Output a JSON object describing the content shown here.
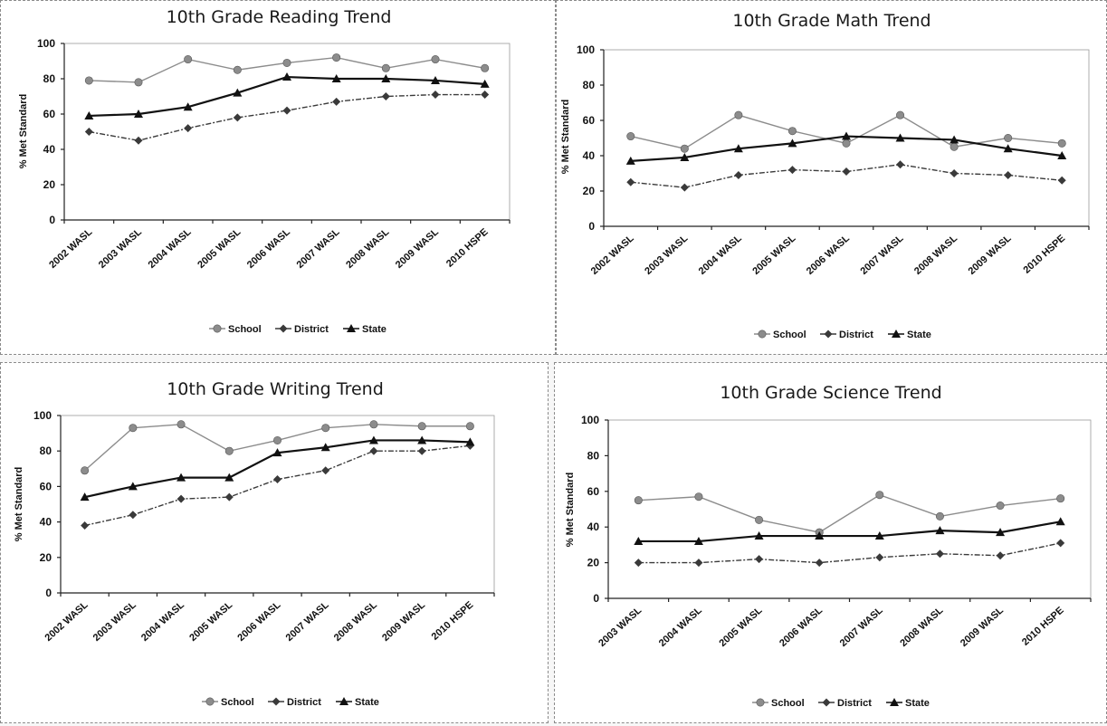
{
  "chart_data": [
    {
      "type": "line",
      "title": "10th Grade Reading Trend",
      "xlabel": "",
      "ylabel": "% Met Standard",
      "ylim": [
        0,
        100
      ],
      "yticks": [
        0,
        20,
        40,
        60,
        80,
        100
      ],
      "categories": [
        "2002 WASL",
        "2003 WASL",
        "2004 WASL",
        "2005 WASL",
        "2006 WASL",
        "2007 WASL",
        "2008 WASL",
        "2009 WASL",
        "2010 HSPE"
      ],
      "series": [
        {
          "name": "School",
          "values": [
            79,
            78,
            91,
            85,
            89,
            92,
            86,
            91,
            86
          ]
        },
        {
          "name": "District",
          "values": [
            50,
            45,
            52,
            58,
            62,
            67,
            70,
            71,
            71
          ]
        },
        {
          "name": "State",
          "values": [
            59,
            60,
            64,
            72,
            81,
            80,
            80,
            79,
            77
          ]
        }
      ],
      "legend": "bottom",
      "grid": false
    },
    {
      "type": "line",
      "title": "10th Grade Math Trend",
      "xlabel": "",
      "ylabel": "% Met Standard",
      "ylim": [
        0,
        100
      ],
      "yticks": [
        0,
        20,
        40,
        60,
        80,
        100
      ],
      "categories": [
        "2002 WASL",
        "2003 WASL",
        "2004 WASL",
        "2005 WASL",
        "2006 WASL",
        "2007 WASL",
        "2008 WASL",
        "2009 WASL",
        "2010 HSPE"
      ],
      "series": [
        {
          "name": "School",
          "values": [
            51,
            44,
            63,
            54,
            47,
            63,
            45,
            50,
            47
          ]
        },
        {
          "name": "District",
          "values": [
            25,
            22,
            29,
            32,
            31,
            35,
            30,
            29,
            26
          ]
        },
        {
          "name": "State",
          "values": [
            37,
            39,
            44,
            47,
            51,
            50,
            49,
            44,
            40
          ]
        }
      ],
      "legend": "bottom",
      "grid": false
    },
    {
      "type": "line",
      "title": "10th Grade Writing Trend",
      "xlabel": "",
      "ylabel": "% Met Standard",
      "ylim": [
        0,
        100
      ],
      "yticks": [
        0,
        20,
        40,
        60,
        80,
        100
      ],
      "categories": [
        "2002 WASL",
        "2003 WASL",
        "2004 WASL",
        "2005 WASL",
        "2006 WASL",
        "2007 WASL",
        "2008 WASL",
        "2009 WASL",
        "2010 HSPE"
      ],
      "series": [
        {
          "name": "School",
          "values": [
            69,
            93,
            95,
            80,
            86,
            93,
            95,
            94,
            94
          ]
        },
        {
          "name": "District",
          "values": [
            38,
            44,
            53,
            54,
            64,
            69,
            80,
            80,
            83
          ]
        },
        {
          "name": "State",
          "values": [
            54,
            60,
            65,
            65,
            79,
            82,
            86,
            86,
            85
          ]
        }
      ],
      "legend": "bottom",
      "grid": false
    },
    {
      "type": "line",
      "title": "10th Grade Science Trend",
      "xlabel": "",
      "ylabel": "% Met Standard",
      "ylim": [
        0,
        100
      ],
      "yticks": [
        0,
        20,
        40,
        60,
        80,
        100
      ],
      "categories": [
        "2003 WASL",
        "2004 WASL",
        "2005 WASL",
        "2006 WASL",
        "2007 WASL",
        "2008 WASL",
        "2009 WASL",
        "2010 HSPE"
      ],
      "series": [
        {
          "name": "School",
          "values": [
            55,
            57,
            44,
            37,
            58,
            46,
            52,
            56
          ]
        },
        {
          "name": "District",
          "values": [
            20,
            20,
            22,
            20,
            23,
            25,
            24,
            31
          ]
        },
        {
          "name": "State",
          "values": [
            32,
            32,
            35,
            35,
            35,
            38,
            37,
            43
          ]
        }
      ],
      "legend": "bottom",
      "grid": false
    }
  ],
  "style": {
    "series_colors": [
      "#8c8c8c",
      "#3a3a3a",
      "#111111"
    ],
    "series_markers": [
      "circle",
      "diamond",
      "triangle"
    ]
  }
}
